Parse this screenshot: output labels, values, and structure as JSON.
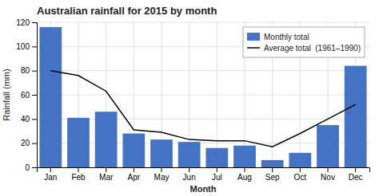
{
  "chart_data": {
    "type": "bar",
    "title": "Australian rainfall for 2015 by month",
    "xlabel": "Month",
    "ylabel": "Rainfall (mm)",
    "categories": [
      "Jan",
      "Feb",
      "Mar",
      "Apr",
      "May",
      "Jun",
      "Jul",
      "Aug",
      "Sep",
      "Oct",
      "Nov",
      "Dec"
    ],
    "series": [
      {
        "name": "Monthly total",
        "type": "bar",
        "color": "#4472C4",
        "values": [
          116,
          41,
          46,
          28,
          23,
          21,
          16,
          18,
          6,
          12,
          35,
          84
        ]
      },
      {
        "name": "Average total  (1961–1990)",
        "type": "line",
        "color": "#000000",
        "values": [
          80,
          76,
          63,
          31,
          29,
          23,
          22,
          22,
          17,
          28,
          40,
          52
        ]
      }
    ],
    "ylim": [
      0,
      120
    ],
    "yticks": [
      0,
      20,
      40,
      60,
      80,
      100,
      120
    ],
    "grid": true,
    "legend": "upper right"
  }
}
